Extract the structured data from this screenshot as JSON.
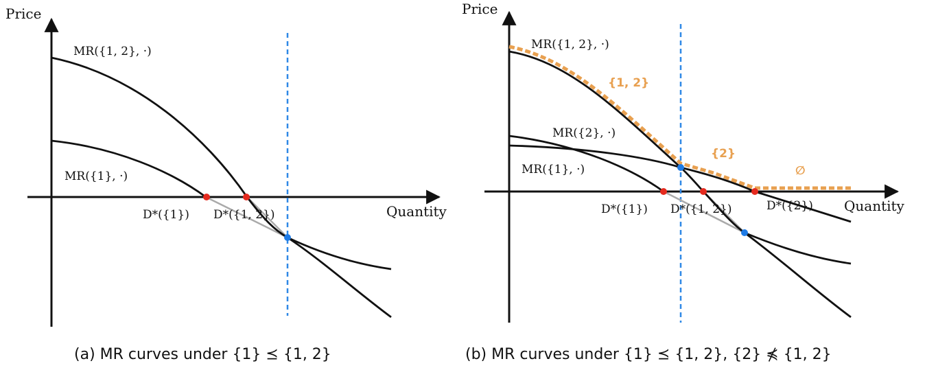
{
  "panel_a": {
    "y_axis_label": "Price",
    "x_axis_label": "Quantity",
    "curve_labels": {
      "mr_12": "MR({1, 2}, ·)",
      "mr_1": "MR({1}, ·)"
    },
    "point_labels": {
      "d_1": "D*({1})",
      "d_12": "D*({1, 2})"
    },
    "caption": "(a) MR curves under {1} ⪯ {1, 2}"
  },
  "panel_b": {
    "y_axis_label": "Price",
    "x_axis_label": "Quantity",
    "curve_labels": {
      "mr_12": "MR({1, 2}, ·)",
      "mr_2": "MR({2}, ·)",
      "mr_1": "MR({1}, ·)"
    },
    "point_labels": {
      "d_1": "D*({1})",
      "d_12": "D*({1, 2})",
      "d_2": "D*({2})"
    },
    "region_labels": {
      "r_12": "{1, 2}",
      "r_2": "{2}",
      "r_empty": "∅"
    },
    "caption": "(b) MR curves under {1} ⪯ {1, 2}, {2} ⋠ {1, 2}"
  },
  "colors": {
    "curve": "#111111",
    "extension": "#aaaaaa",
    "zero_point": "#e52a1e",
    "intersection": "#1e7be6",
    "vertical_line": "#2f88e6",
    "envelope": "#e8a050"
  }
}
